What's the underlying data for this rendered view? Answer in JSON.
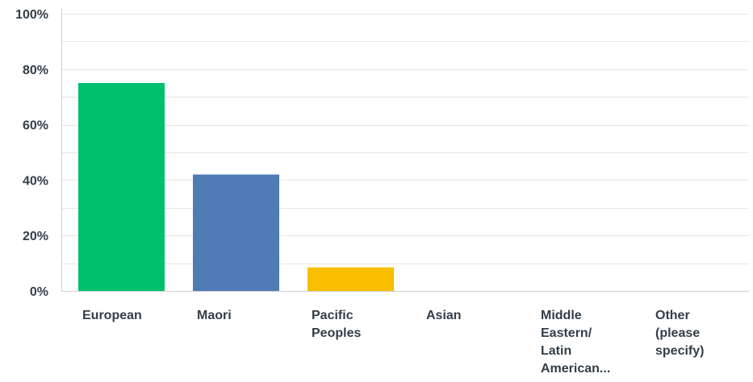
{
  "chart_data": {
    "type": "bar",
    "categories": [
      "European",
      "Maori",
      "Pacific Peoples",
      "Asian",
      "Middle Eastern/ Latin American...",
      "Other (please specify)"
    ],
    "category_label_lines": [
      [
        "European"
      ],
      [
        "Maori"
      ],
      [
        "Pacific",
        "Peoples"
      ],
      [
        "Asian"
      ],
      [
        "Middle",
        "Eastern/",
        "Latin",
        "American..."
      ],
      [
        "Other",
        "(please",
        "specify)"
      ]
    ],
    "values": [
      75,
      42,
      8.5,
      0,
      0,
      0
    ],
    "bar_colors": [
      "#00bf6f",
      "#507cb6",
      "#f9be00",
      "#6bc8cd",
      "#ab6ab0",
      "#d25f90"
    ],
    "ylim": [
      0,
      100
    ],
    "yticks": [
      0,
      20,
      40,
      60,
      80,
      100
    ],
    "ytick_labels": [
      "0%",
      "20%",
      "40%",
      "60%",
      "80%",
      "100%"
    ],
    "minor_gridlines": true,
    "grid": true,
    "gridline_color": "#e6e6e6",
    "axis_color": "#cfcfcf",
    "label_color": "#333e48",
    "title": "",
    "xlabel": "",
    "ylabel": ""
  }
}
